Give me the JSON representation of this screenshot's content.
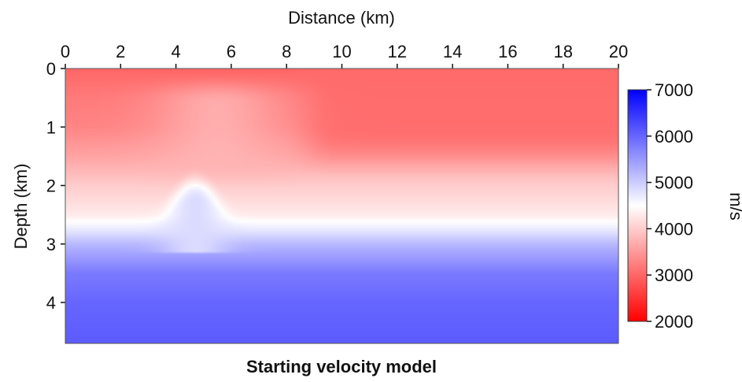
{
  "chart_data": {
    "type": "heatmap",
    "title": "Starting velocity model",
    "xlabel": "Distance (km)",
    "ylabel": "Depth (km)",
    "xlim": [
      0,
      20
    ],
    "ylim": [
      0,
      4.7
    ],
    "x_ticks": [
      "0",
      "2",
      "4",
      "6",
      "8",
      "10",
      "12",
      "14",
      "16",
      "18",
      "20"
    ],
    "y_ticks": [
      "0",
      "1",
      "2",
      "3",
      "4"
    ],
    "colorbar": {
      "label": "m/s",
      "range": [
        2000,
        7000
      ],
      "ticks": [
        "2000",
        "3000",
        "4000",
        "5000",
        "6000",
        "7000"
      ],
      "colors": {
        "low": "#ff0000",
        "mid": "#ffffff",
        "high": "#0000ff"
      }
    },
    "velocity_profile": {
      "depth_km": [
        0,
        0.5,
        1.0,
        1.5,
        2.0,
        2.5,
        2.8,
        3.0,
        3.5,
        4.0,
        4.7
      ],
      "velocity_ms": [
        3000,
        3200,
        3300,
        3600,
        4000,
        4300,
        4800,
        5200,
        5800,
        6000,
        6100
      ]
    },
    "features": [
      {
        "name": "high-velocity dome",
        "x_center_km": 4.7,
        "top_depth_km": 2.0,
        "base_depth_km": 2.75,
        "half_width_km": 1.5,
        "velocity_ms": 4850
      },
      {
        "name": "low-velocity zone",
        "x_range_km": [
          9,
          20
        ],
        "depth_range_km": [
          0,
          1.5
        ],
        "velocity_ms": 3050
      },
      {
        "name": "shallow faster zone",
        "x_range_km": [
          3,
          8
        ],
        "depth_range_km": [
          0.3,
          1.5
        ],
        "velocity_ms": 3800
      }
    ]
  }
}
